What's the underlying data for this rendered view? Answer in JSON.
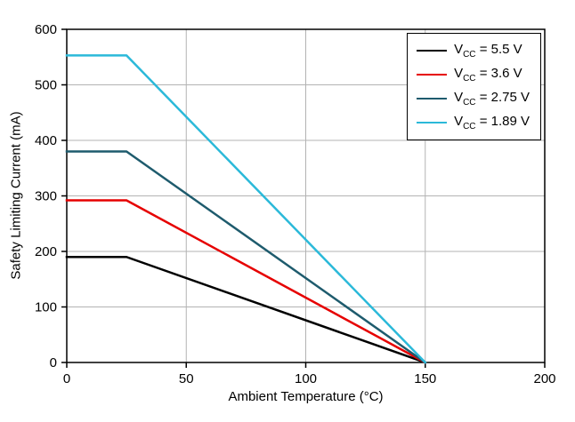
{
  "chart_data": {
    "type": "line",
    "title": "",
    "xlabel": "Ambient Temperature (°C)",
    "ylabel": "Safety Limiting Current (mA)",
    "xlim": [
      0,
      200
    ],
    "ylim": [
      0,
      600
    ],
    "xticks": [
      0,
      50,
      100,
      150,
      200
    ],
    "yticks": [
      0,
      100,
      200,
      300,
      400,
      500,
      600
    ],
    "grid": true,
    "legend_position": "top-right",
    "colors": {
      "grid": "#b3b3b3",
      "axis": "#000000",
      "background": "#ffffff"
    },
    "series": [
      {
        "id": "vcc-5p5v",
        "name": "VCC = 5.5 V",
        "legend": {
          "pre": "V",
          "sub": "CC",
          "post": " = 5.5 V"
        },
        "color": "#000000",
        "points": [
          [
            0,
            190
          ],
          [
            25,
            190
          ],
          [
            150,
            0
          ]
        ]
      },
      {
        "id": "vcc-3p6v",
        "name": "VCC = 3.6 V",
        "legend": {
          "pre": "V",
          "sub": "CC",
          "post": " = 3.6 V"
        },
        "color": "#e60000",
        "points": [
          [
            0,
            292
          ],
          [
            25,
            292
          ],
          [
            150,
            0
          ]
        ]
      },
      {
        "id": "vcc-2p75v",
        "name": "VCC = 2.75 V",
        "legend": {
          "pre": "V",
          "sub": "CC",
          "post": " = 2.75 V"
        },
        "color": "#1e5b6d",
        "points": [
          [
            0,
            380
          ],
          [
            25,
            380
          ],
          [
            150,
            0
          ]
        ]
      },
      {
        "id": "vcc-1p89v",
        "name": "VCC = 1.89 V",
        "legend": {
          "pre": "V",
          "sub": "CC",
          "post": " = 1.89 V"
        },
        "color": "#2bb9d9",
        "points": [
          [
            0,
            553
          ],
          [
            25,
            553
          ],
          [
            150,
            0
          ]
        ]
      }
    ]
  }
}
